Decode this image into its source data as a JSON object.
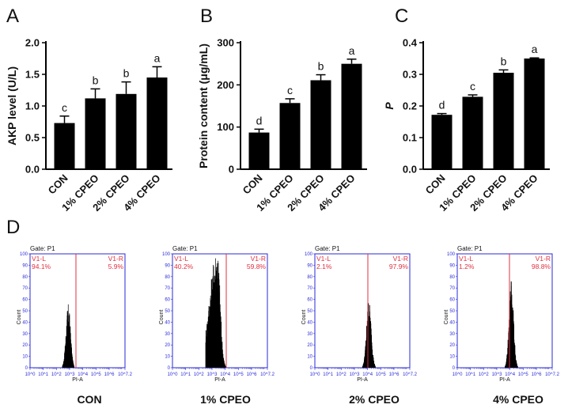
{
  "panel_letters": {
    "A": "A",
    "B": "B",
    "C": "C",
    "D": "D"
  },
  "chart_data": [
    {
      "type": "bar",
      "panel": "A",
      "categories": [
        "CON",
        "1% CPEO",
        "2% CPEO",
        "4% CPEO"
      ],
      "values": [
        0.73,
        1.12,
        1.19,
        1.45
      ],
      "errors": [
        0.11,
        0.15,
        0.19,
        0.17
      ],
      "letters": [
        "c",
        "b",
        "b",
        "a"
      ],
      "ylabel": "AKP level (U/L)",
      "ylim": [
        0,
        2.0
      ],
      "yticks": [
        0.0,
        0.5,
        1.0,
        1.5,
        2.0
      ],
      "ytick_labels": [
        "0.0",
        "0.5",
        "1.0",
        "1.5",
        "2.0"
      ]
    },
    {
      "type": "bar",
      "panel": "B",
      "categories": [
        "CON",
        "1% CPEO",
        "2% CPEO",
        "4% CPEO"
      ],
      "values": [
        87,
        157,
        211,
        250
      ],
      "errors": [
        8,
        10,
        13,
        11
      ],
      "letters": [
        "d",
        "c",
        "b",
        "a"
      ],
      "ylabel": "Protein content (μg/mL)",
      "ylim": [
        0,
        300
      ],
      "yticks": [
        0,
        100,
        200,
        300
      ],
      "ytick_labels": [
        "0",
        "100",
        "200",
        "300"
      ]
    },
    {
      "type": "bar",
      "panel": "C",
      "categories": [
        "CON",
        "1% CPEO",
        "2% CPEO",
        "4% CPEO"
      ],
      "values": [
        0.172,
        0.229,
        0.305,
        0.35
      ],
      "errors": [
        0.004,
        0.006,
        0.009,
        0.002
      ],
      "letters": [
        "d",
        "c",
        "b",
        "a"
      ],
      "ylabel": "P",
      "ylim": [
        0,
        0.4
      ],
      "yticks": [
        0.0,
        0.1,
        0.2,
        0.3,
        0.4
      ],
      "ytick_labels": [
        "0.0",
        "0.1",
        "0.2",
        "0.3",
        "0.4"
      ]
    },
    {
      "type": "histogram",
      "panel": "D",
      "gate": "Gate: P1",
      "ylabel": "Count",
      "xlabel": "PI-A",
      "region_left": "V1-L",
      "region_right": "V1-R",
      "xtick_labels": [
        "10^0",
        "10^1",
        "10^2",
        "10^3",
        "10^4",
        "10^5",
        "10^6",
        "10^7.2"
      ],
      "ytick_labels": [
        "0",
        "10",
        "20",
        "30",
        "40",
        "50",
        "60",
        "70",
        "80",
        "90",
        "100"
      ],
      "gate_position_log": 3.4,
      "plots": [
        {
          "title": "CON",
          "left_pct": "94.1%",
          "right_pct": "5.9%",
          "peak_log": 2.9,
          "width": 0.17,
          "skew": 0.0,
          "height": 0.45
        },
        {
          "title": "1% CPEO",
          "left_pct": "40.2%",
          "right_pct": "59.8%",
          "peak_log": 3.4,
          "width": 0.22,
          "skew": 0.55,
          "height": 0.85
        },
        {
          "title": "2% CPEO",
          "left_pct": "2.1%",
          "right_pct": "97.9%",
          "peak_log": 4.1,
          "width": 0.18,
          "skew": 0.0,
          "height": 0.48
        },
        {
          "title": "4% CPEO",
          "left_pct": "1.2%",
          "right_pct": "98.8%",
          "peak_log": 4.1,
          "width": 0.17,
          "skew": 0.0,
          "height": 0.62
        }
      ]
    }
  ]
}
